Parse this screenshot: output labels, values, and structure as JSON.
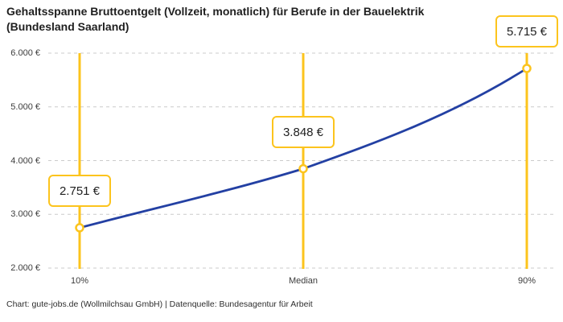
{
  "title": "Gehaltsspanne Bruttoentgelt (Vollzeit, monatlich) für Berufe in der Bauelektrik (Bundesland Saarland)",
  "caption": "Chart: gute-jobs.de (Wollmilchsau GmbH) | Datenquelle: Bundesagentur für Arbeit",
  "colors": {
    "accent_yellow": "#FCC41D",
    "line_blue": "#2340A3",
    "grid_gray": "#CBCBCB",
    "title_text": "#1F1F1F",
    "axis_text": "#3C3C3C"
  },
  "chart_data": {
    "type": "line",
    "title": "Gehaltsspanne Bruttoentgelt (Vollzeit, monatlich) für Berufe in der Bauelektrik (Bundesland Saarland)",
    "categories": [
      "10%",
      "Median",
      "90%"
    ],
    "values": [
      2751,
      3848,
      5715
    ],
    "point_labels": [
      "2.751 €",
      "3.848 €",
      "5.715 €"
    ],
    "xlabel": "",
    "ylabel": "",
    "ylim": [
      2000,
      6000
    ],
    "yticks": [
      2000,
      3000,
      4000,
      5000,
      6000
    ],
    "ytick_labels": [
      "2.000 €",
      "3.000 €",
      "4.000 €",
      "5.000 €",
      "6.000 €"
    ],
    "grid": true,
    "gridline_style": "dashed",
    "curve": "smooth",
    "marker": "open-circle",
    "legend": false,
    "annotations": "value callout box above each percentile line"
  }
}
